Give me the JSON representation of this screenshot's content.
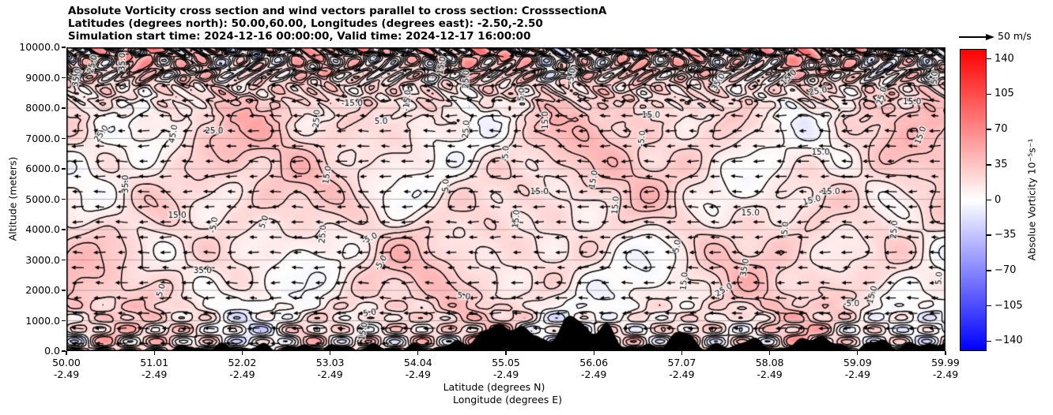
{
  "header": {
    "title_lines": [
      "Absolute Vorticity cross section and wind vectors parallel to cross section: CrosssectionA",
      "Latitudes (degrees north): 50.00,60.00, Longitudes (degrees east): -2.50,-2.50",
      "Simulation start time: 2024-12-16 00:00:00, Valid time: 2024-12-17 16:00:00"
    ]
  },
  "axes": {
    "y_label": "Altitude (meters)",
    "y_ticks": [
      "10000.0",
      "9000.0",
      "8000.0",
      "7000.0",
      "6000.0",
      "5000.0",
      "4000.0",
      "3000.0",
      "2000.0",
      "1000.0",
      "0.0"
    ],
    "x_label_line1": "Latitude (degrees N)",
    "x_label_line2": "Longitude (degrees E)",
    "x_ticks": [
      {
        "lat": "50.00",
        "lon": "-2.49"
      },
      {
        "lat": "51.01",
        "lon": "-2.49"
      },
      {
        "lat": "52.02",
        "lon": "-2.49"
      },
      {
        "lat": "53.03",
        "lon": "-2.49"
      },
      {
        "lat": "54.04",
        "lon": "-2.49"
      },
      {
        "lat": "55.05",
        "lon": "-2.49"
      },
      {
        "lat": "56.06",
        "lon": "-2.49"
      },
      {
        "lat": "57.07",
        "lon": "-2.49"
      },
      {
        "lat": "58.08",
        "lon": "-2.49"
      },
      {
        "lat": "59.09",
        "lon": "-2.49"
      },
      {
        "lat": "59.99",
        "lon": "-2.49"
      }
    ]
  },
  "colorbar": {
    "label": "Absolue Vorticity 10⁻⁵s⁻¹",
    "tick_labels": [
      "140",
      "105",
      "70",
      "35",
      "0",
      "−35",
      "−70",
      "−105",
      "−140"
    ],
    "tick_values": [
      140,
      105,
      70,
      35,
      0,
      -35,
      -70,
      -105,
      -140
    ],
    "vmin": -150,
    "vmax": 150,
    "top_color": "#ff0000",
    "mid_color": "#ffffff",
    "bottom_color": "#0000ff"
  },
  "quiver_key": {
    "label": "50 m/s"
  },
  "chart_data": {
    "type": "heatmap",
    "subtype": "filled contour vertical cross-section with overlaid contour lines and wind quiver",
    "title": "Absolute Vorticity cross section and wind vectors parallel to cross section: CrosssectionA",
    "xlabel": "Latitude (degrees N) / Longitude (degrees E)",
    "ylabel": "Altitude (meters)",
    "x_tick_lats": [
      50.0,
      51.01,
      52.02,
      53.03,
      54.04,
      55.05,
      56.06,
      57.07,
      58.08,
      59.09,
      59.99
    ],
    "x_tick_lon_constant": -2.49,
    "y_range_meters": [
      0,
      10000
    ],
    "y_tick_step_meters": 1000,
    "grid": "horizontal gray gridlines at every 1000 m",
    "colormap": "bwr (blue-white-red)",
    "color_range": [
      -150,
      150
    ],
    "colorbar_ticks": [
      140,
      105,
      70,
      35,
      0,
      -35,
      -70,
      -105,
      -140
    ],
    "field_units": "10^-5 s^-1",
    "contour_levels": [
      -45,
      -35,
      -25,
      -15,
      -5,
      5,
      15,
      25,
      35,
      45
    ],
    "negative_contours_dashed": true,
    "field_description": "Mostly weakly positive vorticity (pale pink 5-35) with scattered negative pockets (pale blue -5 to -15); chaotic high-amplitude structure near the model top (8000-10000 m) and near the surface with saturated red/blue cores",
    "wind": {
      "direction": "arrows point toward lower latitude (leftward)",
      "reference_label": "50 m/s",
      "grid": "about 40 columns x 20 rows"
    },
    "terrain": "black filled orography along the bottom axis, tallest peaks (~1000 m) near latitudes 54.5-56.5, smaller hills toward 58-60",
    "contour_labels": [
      {
        "v": "35.0",
        "x": 0.012,
        "y": 0.1,
        "r": -80
      },
      {
        "v": "25.0",
        "x": 0.03,
        "y": 0.055,
        "r": -75
      },
      {
        "v": "35.0",
        "x": 0.064,
        "y": 0.048,
        "r": -88
      },
      {
        "v": "25.0",
        "x": 0.04,
        "y": 0.285,
        "r": -55
      },
      {
        "v": "45.0",
        "x": 0.122,
        "y": 0.285,
        "r": -80
      },
      {
        "v": "25.0",
        "x": 0.168,
        "y": 0.275,
        "r": 0
      },
      {
        "v": "35.0",
        "x": 0.068,
        "y": 0.45,
        "r": -90
      },
      {
        "v": "15.0",
        "x": 0.126,
        "y": 0.555,
        "r": 0
      },
      {
        "v": "35.0",
        "x": 0.155,
        "y": 0.735,
        "r": 0
      },
      {
        "v": "5.0",
        "x": 0.108,
        "y": 0.8,
        "r": -75
      },
      {
        "v": "-5.0",
        "x": 0.168,
        "y": 0.585,
        "r": -80,
        "d": 1
      },
      {
        "v": "5.0",
        "x": 0.225,
        "y": 0.575,
        "r": -70
      },
      {
        "v": "25.0",
        "x": 0.285,
        "y": 0.235,
        "r": -85
      },
      {
        "v": "15.0",
        "x": 0.297,
        "y": 0.42,
        "r": -80
      },
      {
        "v": "25.0",
        "x": 0.292,
        "y": 0.615,
        "r": -85
      },
      {
        "v": "-15.0",
        "x": 0.325,
        "y": 0.185,
        "r": 0,
        "d": 1
      },
      {
        "v": "5.0",
        "x": 0.358,
        "y": 0.245,
        "r": 0
      },
      {
        "v": "-15.0",
        "x": 0.388,
        "y": 0.175,
        "r": -85,
        "d": 1
      },
      {
        "v": "-5.0",
        "x": 0.345,
        "y": 0.63,
        "r": -25,
        "d": 1
      },
      {
        "v": "-5.0",
        "x": 0.358,
        "y": 0.71,
        "r": -60,
        "d": 1
      },
      {
        "v": "5.0",
        "x": 0.345,
        "y": 0.875,
        "r": -8
      },
      {
        "v": "15.0",
        "x": 0.338,
        "y": 0.935,
        "r": -80
      },
      {
        "v": "5.0",
        "x": 0.432,
        "y": 0.455,
        "r": -88
      },
      {
        "v": "-5.0",
        "x": 0.5,
        "y": 0.35,
        "r": -85,
        "d": 1
      },
      {
        "v": "5.0",
        "x": 0.452,
        "y": 0.82,
        "r": 8
      },
      {
        "v": "15.0",
        "x": 0.512,
        "y": 0.565,
        "r": -85
      },
      {
        "v": "15.0",
        "x": 0.538,
        "y": 0.475,
        "r": 0
      },
      {
        "v": "25.0",
        "x": 0.455,
        "y": 0.27,
        "r": -85
      },
      {
        "v": "15.0",
        "x": 0.427,
        "y": 0.06,
        "r": -80
      },
      {
        "v": "-5.0",
        "x": 0.575,
        "y": 0.095,
        "r": -80,
        "d": 1
      },
      {
        "v": "25.0",
        "x": 0.455,
        "y": 0.105,
        "r": -88
      },
      {
        "v": "15.0",
        "x": 0.545,
        "y": 0.24,
        "r": -90
      },
      {
        "v": "5.0",
        "x": 0.518,
        "y": 0.155,
        "r": -85
      },
      {
        "v": "15.0",
        "x": 0.6,
        "y": 0.435,
        "r": -80
      },
      {
        "v": "15.0",
        "x": 0.625,
        "y": 0.52,
        "r": -85
      },
      {
        "v": "-5.0",
        "x": 0.655,
        "y": 0.3,
        "r": -85,
        "d": 1
      },
      {
        "v": "15.0",
        "x": 0.665,
        "y": 0.225,
        "r": 0
      },
      {
        "v": "5.0",
        "x": 0.695,
        "y": 0.655,
        "r": -80
      },
      {
        "v": "15.0",
        "x": 0.703,
        "y": 0.77,
        "r": -85
      },
      {
        "v": "25.0",
        "x": 0.748,
        "y": 0.8,
        "r": -30
      },
      {
        "v": "35.0",
        "x": 0.772,
        "y": 0.725,
        "r": -80
      },
      {
        "v": "15.0",
        "x": 0.778,
        "y": 0.545,
        "r": 0
      },
      {
        "v": "-5.0",
        "x": 0.818,
        "y": 0.6,
        "r": -85,
        "d": 1
      },
      {
        "v": "35.0",
        "x": 0.742,
        "y": 0.115,
        "r": -60
      },
      {
        "v": "15.0",
        "x": 0.822,
        "y": 0.1,
        "r": -45
      },
      {
        "v": "25.0",
        "x": 0.855,
        "y": 0.145,
        "r": -10
      },
      {
        "v": "15.0",
        "x": 0.858,
        "y": 0.345,
        "r": 0
      },
      {
        "v": "-15.0",
        "x": 0.868,
        "y": 0.475,
        "r": 0,
        "d": 1
      },
      {
        "v": "15.0",
        "x": 0.848,
        "y": 0.505,
        "r": -15
      },
      {
        "v": "25.0",
        "x": 0.942,
        "y": 0.6,
        "r": -85
      },
      {
        "v": "15.0",
        "x": 0.917,
        "y": 0.815,
        "r": -75
      },
      {
        "v": "-5.0",
        "x": 0.893,
        "y": 0.845,
        "r": 0,
        "d": 1
      },
      {
        "v": "5.0",
        "x": 0.993,
        "y": 0.76,
        "r": -85
      },
      {
        "v": "15.0",
        "x": 0.972,
        "y": 0.29,
        "r": -70
      },
      {
        "v": "25.0",
        "x": 0.928,
        "y": 0.16,
        "r": -75
      },
      {
        "v": "15.0",
        "x": 0.962,
        "y": 0.18,
        "r": 0
      },
      {
        "v": "5.0",
        "x": 0.988,
        "y": 0.1,
        "r": -85
      }
    ]
  }
}
